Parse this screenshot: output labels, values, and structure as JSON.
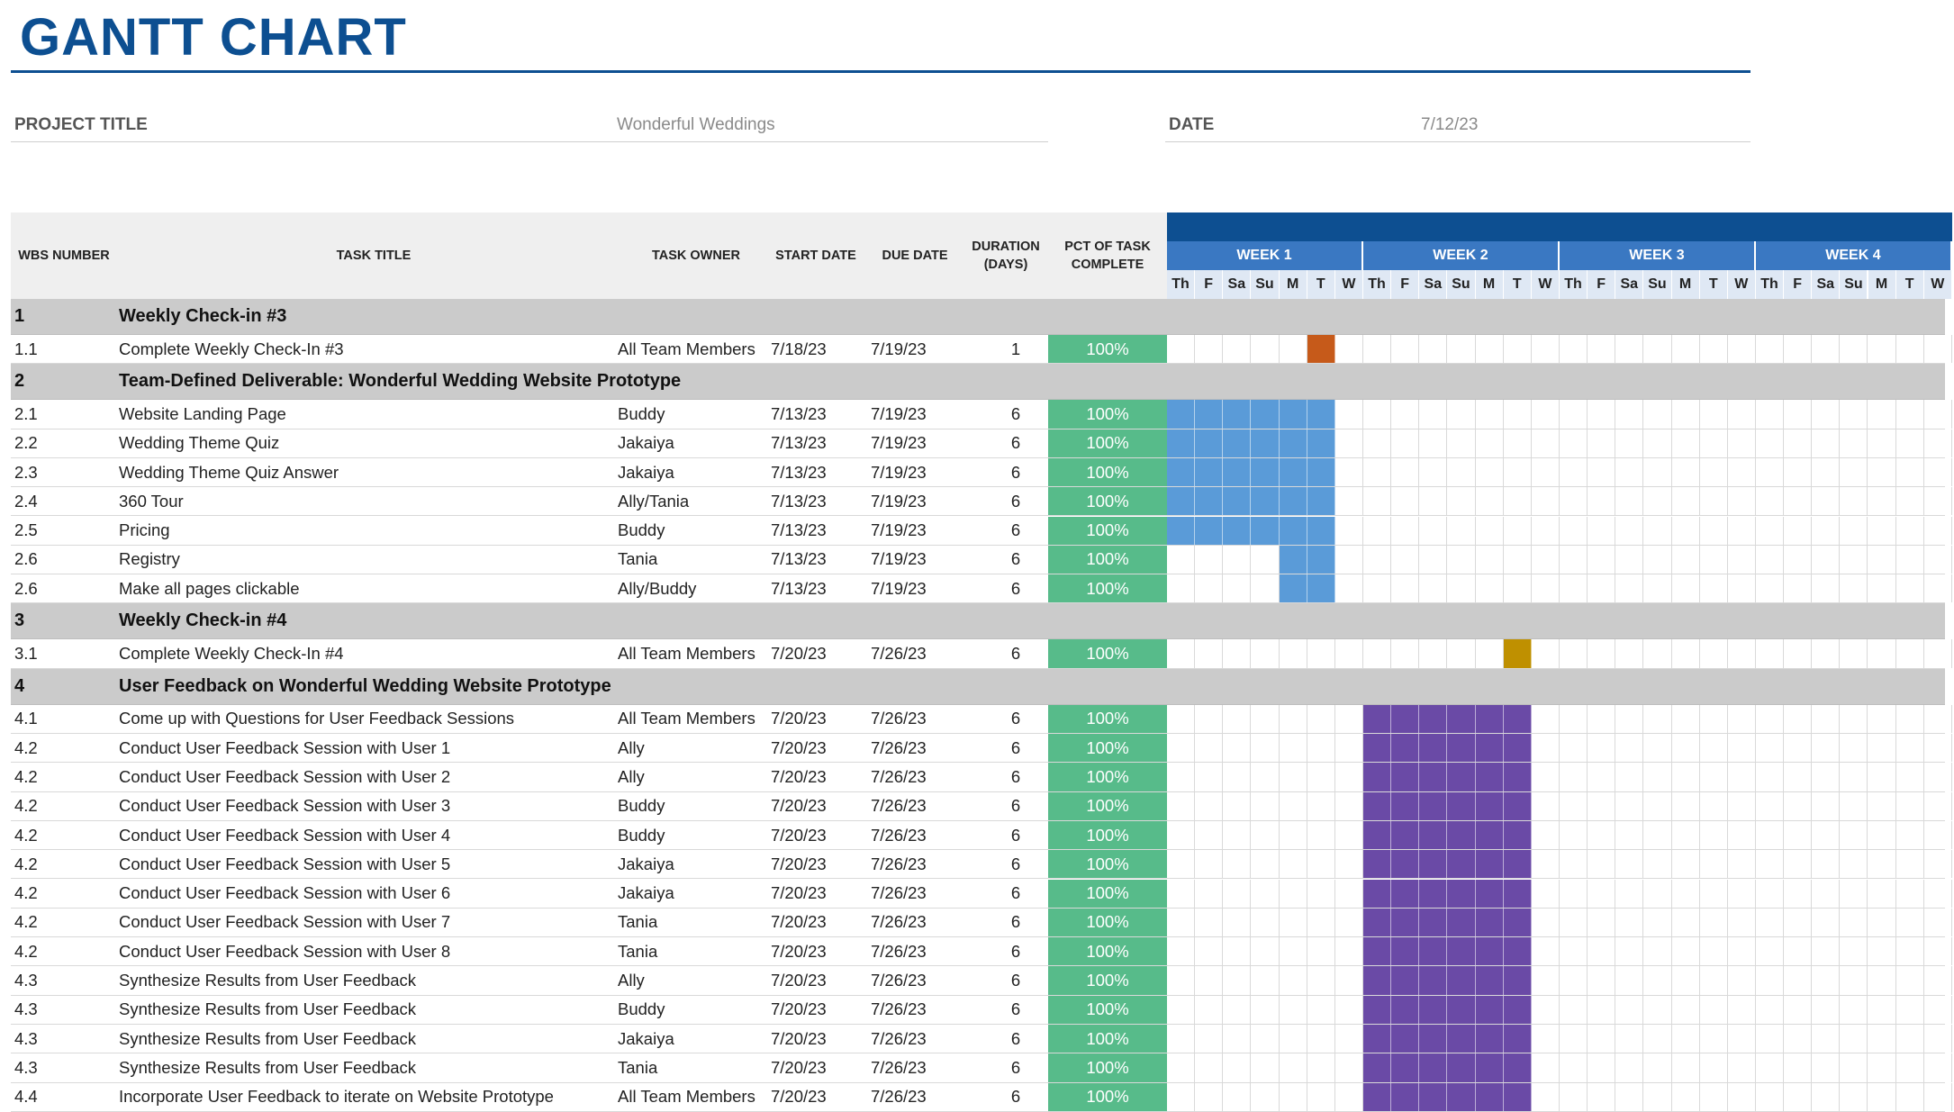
{
  "title": "GANTT CHART",
  "project_title_label": "PROJECT TITLE",
  "project_title_value": "Wonderful Weddings",
  "date_label": "DATE",
  "date_value": "7/12/23",
  "columns": {
    "wbs": "WBS NUMBER",
    "task": "TASK TITLE",
    "owner": "TASK OWNER",
    "start": "START DATE",
    "due": "DUE DATE",
    "duration": "DURATION (DAYS)",
    "pct": "PCT OF TASK COMPLETE"
  },
  "weeks": [
    "WEEK 1",
    "WEEK 2",
    "WEEK 3",
    "WEEK 4"
  ],
  "days": [
    "Th",
    "F",
    "Sa",
    "Su",
    "M",
    "T",
    "W",
    "Th",
    "F",
    "Sa",
    "Su",
    "M",
    "T",
    "W",
    "Th",
    "F",
    "Sa",
    "Su",
    "M",
    "T",
    "W",
    "Th",
    "F",
    "Sa",
    "Su",
    "M",
    "T",
    "W"
  ],
  "colors": {
    "orange": "#c65a1a",
    "blue": "#5a9bd8",
    "gold": "#bf9000",
    "purple": "#6a4aa6",
    "pct_fill": "#57bb8a"
  },
  "rows": [
    {
      "type": "group",
      "wbs": "1",
      "task": "Weekly Check-in #3"
    },
    {
      "type": "task",
      "wbs": "1.1",
      "task": "Complete Weekly Check-In #3",
      "owner": "All Team Members",
      "start": "7/18/23",
      "due": "7/19/23",
      "duration": "1",
      "pct": "100%",
      "bar": {
        "from": 5,
        "to": 6,
        "color": "orange"
      }
    },
    {
      "type": "group",
      "wbs": "2",
      "task": "Team-Defined Deliverable: Wonderful Wedding Website Prototype"
    },
    {
      "type": "task",
      "wbs": "2.1",
      "task": "Website Landing Page",
      "owner": "Buddy",
      "start": "7/13/23",
      "due": "7/19/23",
      "duration": "6",
      "pct": "100%",
      "bar": {
        "from": 0,
        "to": 6,
        "color": "blue"
      }
    },
    {
      "type": "task",
      "wbs": "2.2",
      "task": "Wedding Theme Quiz",
      "owner": "Jakaiya",
      "start": "7/13/23",
      "due": "7/19/23",
      "duration": "6",
      "pct": "100%",
      "bar": {
        "from": 0,
        "to": 6,
        "color": "blue"
      }
    },
    {
      "type": "task",
      "wbs": "2.3",
      "task": "Wedding Theme Quiz Answer",
      "owner": "Jakaiya",
      "start": "7/13/23",
      "due": "7/19/23",
      "duration": "6",
      "pct": "100%",
      "bar": {
        "from": 0,
        "to": 6,
        "color": "blue"
      }
    },
    {
      "type": "task",
      "wbs": "2.4",
      "task": "360 Tour",
      "owner": "Ally/Tania",
      "start": "7/13/23",
      "due": "7/19/23",
      "duration": "6",
      "pct": "100%",
      "bar": {
        "from": 0,
        "to": 6,
        "color": "blue"
      }
    },
    {
      "type": "task",
      "wbs": "2.5",
      "task": "Pricing",
      "owner": "Buddy",
      "start": "7/13/23",
      "due": "7/19/23",
      "duration": "6",
      "pct": "100%",
      "bar": {
        "from": 0,
        "to": 6,
        "color": "blue"
      }
    },
    {
      "type": "task",
      "wbs": "2.6",
      "task": "Registry",
      "owner": "Tania",
      "start": "7/13/23",
      "due": "7/19/23",
      "duration": "6",
      "pct": "100%",
      "bar": {
        "from": 4,
        "to": 6,
        "color": "blue"
      }
    },
    {
      "type": "task",
      "wbs": "2.6",
      "task": "Make all pages clickable",
      "owner": "Ally/Buddy",
      "start": "7/13/23",
      "due": "7/19/23",
      "duration": "6",
      "pct": "100%",
      "bar": {
        "from": 4,
        "to": 6,
        "color": "blue"
      }
    },
    {
      "type": "group",
      "wbs": "3",
      "task": "Weekly Check-in #4"
    },
    {
      "type": "task",
      "wbs": "3.1",
      "task": "Complete Weekly Check-In #4",
      "owner": "All Team Members",
      "start": "7/20/23",
      "due": "7/26/23",
      "duration": "6",
      "pct": "100%",
      "bar": {
        "from": 12,
        "to": 13,
        "color": "gold"
      }
    },
    {
      "type": "group",
      "wbs": "4",
      "task": "User Feedback on Wonderful Wedding Website Prototype"
    },
    {
      "type": "task",
      "wbs": "4.1",
      "task": "Come up with Questions for User Feedback Sessions",
      "owner": "All Team Members",
      "start": "7/20/23",
      "due": "7/26/23",
      "duration": "6",
      "pct": "100%",
      "bar": {
        "from": 7,
        "to": 13,
        "color": "purple"
      }
    },
    {
      "type": "task",
      "wbs": "4.2",
      "task": "Conduct User Feedback Session with User 1",
      "owner": "Ally",
      "start": "7/20/23",
      "due": "7/26/23",
      "duration": "6",
      "pct": "100%",
      "bar": {
        "from": 7,
        "to": 13,
        "color": "purple"
      }
    },
    {
      "type": "task",
      "wbs": "4.2",
      "task": "Conduct User Feedback Session with User 2",
      "owner": "Ally",
      "start": "7/20/23",
      "due": "7/26/23",
      "duration": "6",
      "pct": "100%",
      "bar": {
        "from": 7,
        "to": 13,
        "color": "purple"
      }
    },
    {
      "type": "task",
      "wbs": "4.2",
      "task": "Conduct User Feedback Session with User 3",
      "owner": "Buddy",
      "start": "7/20/23",
      "due": "7/26/23",
      "duration": "6",
      "pct": "100%",
      "bar": {
        "from": 7,
        "to": 13,
        "color": "purple"
      }
    },
    {
      "type": "task",
      "wbs": "4.2",
      "task": "Conduct User Feedback Session with User 4",
      "owner": "Buddy",
      "start": "7/20/23",
      "due": "7/26/23",
      "duration": "6",
      "pct": "100%",
      "bar": {
        "from": 7,
        "to": 13,
        "color": "purple"
      }
    },
    {
      "type": "task",
      "wbs": "4.2",
      "task": "Conduct User Feedback Session with User 5",
      "owner": "Jakaiya",
      "start": "7/20/23",
      "due": "7/26/23",
      "duration": "6",
      "pct": "100%",
      "bar": {
        "from": 7,
        "to": 13,
        "color": "purple"
      }
    },
    {
      "type": "task",
      "wbs": "4.2",
      "task": "Conduct User Feedback Session with User 6",
      "owner": "Jakaiya",
      "start": "7/20/23",
      "due": "7/26/23",
      "duration": "6",
      "pct": "100%",
      "bar": {
        "from": 7,
        "to": 13,
        "color": "purple"
      }
    },
    {
      "type": "task",
      "wbs": "4.2",
      "task": "Conduct User Feedback Session with User 7",
      "owner": "Tania",
      "start": "7/20/23",
      "due": "7/26/23",
      "duration": "6",
      "pct": "100%",
      "bar": {
        "from": 7,
        "to": 13,
        "color": "purple"
      }
    },
    {
      "type": "task",
      "wbs": "4.2",
      "task": "Conduct User Feedback Session with User 8",
      "owner": "Tania",
      "start": "7/20/23",
      "due": "7/26/23",
      "duration": "6",
      "pct": "100%",
      "bar": {
        "from": 7,
        "to": 13,
        "color": "purple"
      }
    },
    {
      "type": "task",
      "wbs": "4.3",
      "task": "Synthesize Results from User Feedback",
      "owner": "Ally",
      "start": "7/20/23",
      "due": "7/26/23",
      "duration": "6",
      "pct": "100%",
      "bar": {
        "from": 7,
        "to": 13,
        "color": "purple"
      }
    },
    {
      "type": "task",
      "wbs": "4.3",
      "task": "Synthesize Results from User Feedback",
      "owner": "Buddy",
      "start": "7/20/23",
      "due": "7/26/23",
      "duration": "6",
      "pct": "100%",
      "bar": {
        "from": 7,
        "to": 13,
        "color": "purple"
      }
    },
    {
      "type": "task",
      "wbs": "4.3",
      "task": "Synthesize Results from User Feedback",
      "owner": "Jakaiya",
      "start": "7/20/23",
      "due": "7/26/23",
      "duration": "6",
      "pct": "100%",
      "bar": {
        "from": 7,
        "to": 13,
        "color": "purple"
      }
    },
    {
      "type": "task",
      "wbs": "4.3",
      "task": "Synthesize Results from User Feedback",
      "owner": "Tania",
      "start": "7/20/23",
      "due": "7/26/23",
      "duration": "6",
      "pct": "100%",
      "bar": {
        "from": 7,
        "to": 13,
        "color": "purple"
      }
    },
    {
      "type": "task",
      "wbs": "4.4",
      "task": "Incorporate User Feedback to iterate on Website Prototype",
      "owner": "All Team Members",
      "start": "7/20/23",
      "due": "7/26/23",
      "duration": "6",
      "pct": "100%",
      "bar": {
        "from": 7,
        "to": 13,
        "color": "purple"
      }
    }
  ]
}
